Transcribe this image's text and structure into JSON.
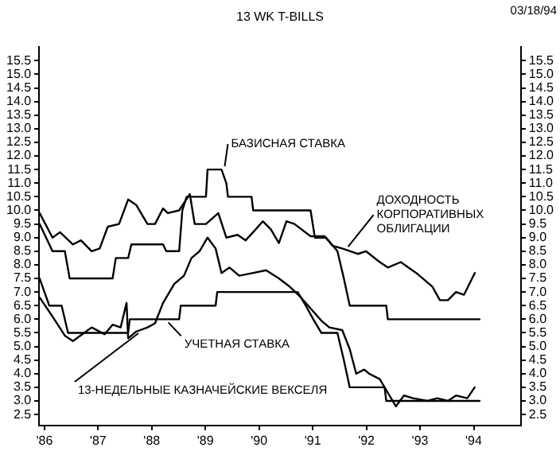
{
  "chart_data": {
    "type": "line",
    "title": "13 WK T-BILLS",
    "xlim": [
      1985.9,
      1994.88
    ],
    "xticks": [
      {
        "value": 1986,
        "label": "'86"
      },
      {
        "value": 1987,
        "label": "'87"
      },
      {
        "value": 1988,
        "label": "'88"
      },
      {
        "value": 1989,
        "label": "'89"
      },
      {
        "value": 1990,
        "label": "'90"
      },
      {
        "value": 1991,
        "label": "'91"
      },
      {
        "value": 1992,
        "label": "'92"
      },
      {
        "value": 1993,
        "label": "'93"
      },
      {
        "value": 1994,
        "label": "'94"
      }
    ],
    "ylim": [
      2.1,
      16.0
    ],
    "yticks": [
      2.5,
      {
        "value": 3,
        "label": "3.0"
      },
      3.5,
      {
        "value": 4,
        "label": "4.0"
      },
      4.5,
      {
        "value": 5,
        "label": "5.0"
      },
      5.5,
      {
        "value": 6,
        "label": "6.0"
      },
      6.5,
      {
        "value": 7,
        "label": "7.0"
      },
      7.5,
      {
        "value": 8,
        "label": "8.0"
      },
      8.5,
      {
        "value": 9,
        "label": "9.0"
      },
      9.5,
      {
        "value": 10,
        "label": "10.0"
      },
      10.5,
      {
        "value": 11,
        "label": "11.0"
      },
      11.5,
      {
        "value": 12,
        "label": "12.0"
      },
      12.5,
      {
        "value": 13,
        "label": "13.0"
      },
      13.5,
      {
        "value": 14,
        "label": "14.0"
      },
      14.5,
      {
        "value": 15,
        "label": "15.0"
      },
      15.5
    ],
    "y2lim": [
      2.1,
      16.0
    ],
    "y2ticks": [
      2.5,
      {
        "value": 3,
        "label": "3.0"
      },
      3.5,
      {
        "value": 4,
        "label": "4.0"
      },
      4.5,
      {
        "value": 5,
        "label": "5.0"
      },
      5.5,
      {
        "value": 6,
        "label": "6.0"
      },
      6.5,
      {
        "value": 7,
        "label": "7.0"
      },
      7.5,
      {
        "value": 8,
        "label": "8.0"
      },
      8.5,
      {
        "value": 9,
        "label": "9.0"
      },
      9.5,
      {
        "value": 10,
        "label": "10.0"
      },
      10.5,
      {
        "value": 11,
        "label": "11.0"
      },
      11.5,
      {
        "value": 12,
        "label": "12.0"
      },
      12.5,
      {
        "value": 13,
        "label": "13.0"
      },
      13.5,
      {
        "value": 14,
        "label": "14.0"
      },
      14.5,
      {
        "value": 15,
        "label": "15.0"
      },
      15.5
    ],
    "grid": false,
    "legend": false,
    "marker": "none",
    "line_style": "solid",
    "series": [
      {
        "color": "#000000",
        "x": [
          1985.91,
          1986.15,
          1986.38,
          1986.47,
          1987.27,
          1987.33,
          1987.56,
          1987.62,
          1988.21,
          1988.27,
          1988.51,
          1988.57,
          1988.65,
          1989.01,
          1989.04,
          1989.3,
          1989.39,
          1989.42,
          1989.86,
          1989.89,
          1990.96,
          1991.04,
          1991.25,
          1991.46,
          1991.58,
          1991.69,
          1992.37,
          1992.4,
          1994.11
        ],
        "values": [
          9.5,
          8.5,
          8.5,
          7.5,
          7.5,
          8.25,
          8.25,
          8.75,
          8.75,
          8.5,
          8.5,
          10.0,
          10.5,
          10.5,
          11.5,
          11.5,
          11.0,
          10.5,
          10.5,
          10.0,
          10.0,
          9.0,
          9.0,
          8.5,
          7.5,
          6.5,
          6.5,
          6.0,
          6.0
        ]
      },
      {
        "color": "#000000",
        "x": [
          1985.91,
          1986.15,
          1986.29,
          1986.53,
          1986.68,
          1986.88,
          1987.03,
          1987.18,
          1987.39,
          1987.56,
          1987.71,
          1987.92,
          1988.06,
          1988.21,
          1988.3,
          1988.51,
          1988.71,
          1988.8,
          1989.01,
          1989.24,
          1989.39,
          1989.6,
          1989.75,
          1989.89,
          1990.07,
          1990.22,
          1990.37,
          1990.51,
          1990.66,
          1990.96,
          1991.22,
          1991.37,
          1991.55,
          1991.84,
          1991.99,
          1992.25,
          1992.4,
          1992.64,
          1992.93,
          1993.23,
          1993.37,
          1993.52,
          1993.67,
          1993.82,
          1994.02
        ],
        "values": [
          9.9,
          9.0,
          9.2,
          8.75,
          8.9,
          8.5,
          8.6,
          9.4,
          9.5,
          10.4,
          10.2,
          9.5,
          9.5,
          10.07,
          9.9,
          10.0,
          10.6,
          9.5,
          9.5,
          9.9,
          9.0,
          9.1,
          8.9,
          9.2,
          9.6,
          9.3,
          8.8,
          9.6,
          9.5,
          9.05,
          9.05,
          8.7,
          8.6,
          8.4,
          8.5,
          8.1,
          7.9,
          8.1,
          7.7,
          7.2,
          6.7,
          6.7,
          7.0,
          6.9,
          7.7
        ]
      },
      {
        "color": "#000000",
        "x": [
          1985.91,
          1986.09,
          1986.32,
          1986.44,
          1987.56,
          1987.59,
          1988.51,
          1988.54,
          1989.19,
          1989.22,
          1990.72,
          1990.87,
          1991.01,
          1991.16,
          1991.46,
          1991.58,
          1991.69,
          1992.34,
          1992.37,
          1994.11
        ],
        "values": [
          7.5,
          6.5,
          6.5,
          5.5,
          5.5,
          6.0,
          6.0,
          6.5,
          6.5,
          7.0,
          7.0,
          6.5,
          6.0,
          5.5,
          5.5,
          4.5,
          3.5,
          3.5,
          3.0,
          3.0
        ]
      },
      {
        "color": "#000000",
        "x": [
          1985.91,
          1986.15,
          1986.38,
          1986.53,
          1986.74,
          1986.88,
          1987.12,
          1987.27,
          1987.42,
          1987.53,
          1987.56,
          1987.71,
          1987.92,
          1988.06,
          1988.21,
          1988.42,
          1988.6,
          1988.74,
          1988.89,
          1989.04,
          1989.19,
          1989.3,
          1989.45,
          1989.63,
          1989.89,
          1990.13,
          1990.37,
          1990.57,
          1990.78,
          1990.96,
          1991.16,
          1991.31,
          1991.55,
          1991.69,
          1991.81,
          1991.96,
          1992.05,
          1992.25,
          1992.4,
          1992.55,
          1992.7,
          1992.87,
          1993.14,
          1993.32,
          1993.52,
          1993.67,
          1993.88,
          1994.02
        ],
        "values": [
          6.8,
          6.1,
          5.4,
          5.2,
          5.5,
          5.7,
          5.45,
          5.8,
          5.7,
          6.6,
          5.3,
          5.55,
          5.7,
          5.85,
          6.6,
          7.3,
          7.6,
          8.25,
          8.5,
          9.0,
          8.6,
          7.7,
          7.9,
          7.6,
          7.7,
          7.8,
          7.5,
          7.2,
          6.8,
          6.4,
          5.95,
          5.7,
          5.6,
          4.9,
          4.0,
          4.15,
          4.0,
          3.8,
          3.3,
          2.8,
          3.2,
          3.1,
          3.0,
          3.1,
          3.0,
          3.2,
          3.1,
          3.5
        ]
      }
    ],
    "annotations": [
      {
        "text": "БАЗИСНАЯ СТАВКА",
        "x": 1989.3,
        "y": 11.5
      },
      {
        "text": "ДОХОДНОСТЬ КОРПОРАТИВНЫХ ОБЛИГАЦИИ",
        "x": 1991.6,
        "y": 8.55
      },
      {
        "text": "УЧЕТНАЯ СТАВКА",
        "x": 1988.25,
        "y": 6.0
      },
      {
        "text": "13-НЕДЕЛЬНЫЕ КАЗНАЧЕЙСКИЕ ВЕКСЕЛЯ",
        "x": 1987.75,
        "y": 5.6
      },
      "03/18/94"
    ]
  }
}
